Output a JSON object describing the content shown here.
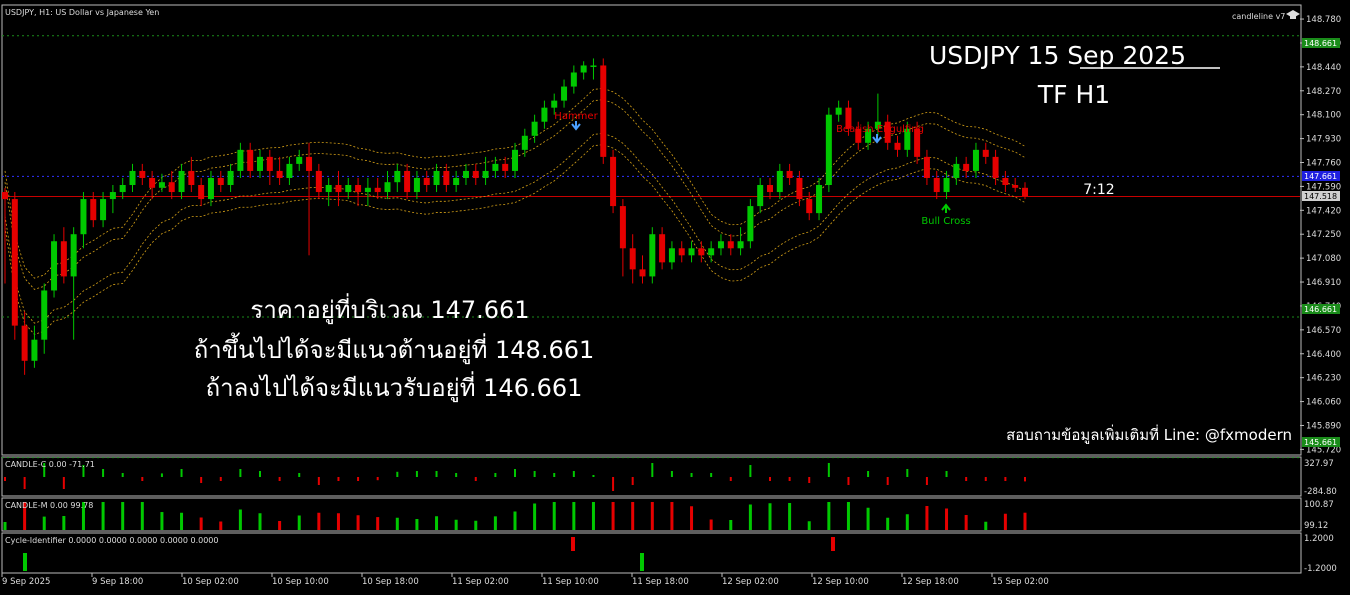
{
  "window": {
    "symbol_header": "USDJPY, H1:  US Dollar vs Japanese Yen",
    "indicator_name": "candleline v7",
    "clock": "7:12"
  },
  "overlay": {
    "title": "USDJPY  15 Sep  2025",
    "timeframe": "TF H1",
    "thai_line1": "ราคาอยู่ที่บริเวณ 147.661",
    "thai_line2": "ถ้าขึ้นไปได้จะมีแนวต้านอยู่ที่ 148.661",
    "thai_line3": "ถ้าลงไปได้จะมีแนวรับอยู่ที่ 146.661",
    "contact": "สอบถามข้อมูลเพิ่มเติมที่ Line: @fxmodern"
  },
  "annotations": {
    "hammer": "Hammer",
    "bearish": "Bearish Engulfing",
    "bull_cross": "Bull Cross"
  },
  "subwindows": {
    "candle_c_label": "CANDLE-C 0.00 -71.71",
    "candle_c_top": "327.97",
    "candle_c_bottom": "-284.80",
    "candle_m_label": "CANDLE-M 0.00 99.78",
    "candle_m_top": "100.87",
    "candle_m_bottom": "99.12",
    "cycle_label": "Cycle-Identifier 0.0000 0.0000 0.0000 0.0000 0.0000",
    "cycle_top": "1.2000",
    "cycle_bottom": "-1.2000"
  },
  "price_tags": {
    "resistance": "148.661",
    "current_blue": "147.661",
    "current": "147.518",
    "support": "146.661",
    "bottom": "145.661"
  },
  "colors": {
    "bull": "#00c800",
    "bear": "#e60000",
    "resistance_line": "#1a8c1a",
    "current_line": "#c80000",
    "blue_line": "#3030ff",
    "band": "#d4a017"
  },
  "chart_data": {
    "type": "candlestick",
    "symbol": "USDJPY",
    "timeframe": "H1",
    "y_ticks": [
      "148.780",
      "148.610",
      "148.440",
      "148.270",
      "148.100",
      "147.930",
      "147.760",
      "147.590",
      "147.420",
      "147.250",
      "147.080",
      "146.910",
      "146.740",
      "146.570",
      "146.400",
      "146.230",
      "146.060",
      "145.890",
      "145.720"
    ],
    "ylim": [
      145.68,
      148.88
    ],
    "x_ticks": [
      "9 Sep 2025",
      "9 Sep 18:00",
      "10 Sep 02:00",
      "10 Sep 10:00",
      "10 Sep 18:00",
      "11 Sep 02:00",
      "11 Sep 10:00",
      "11 Sep 18:00",
      "12 Sep 02:00",
      "12 Sep 10:00",
      "12 Sep 18:00",
      "15 Sep 02:00"
    ],
    "levels": {
      "resistance": 148.661,
      "current": 147.518,
      "current_blue": 147.661,
      "support": 146.661,
      "bottom": 145.661
    },
    "candles": [
      [
        147.55,
        147.5,
        147.58,
        146.9
      ],
      [
        147.5,
        146.6,
        147.55,
        146.5
      ],
      [
        146.6,
        146.35,
        146.7,
        146.25
      ],
      [
        146.35,
        146.5,
        146.6,
        146.3
      ],
      [
        146.5,
        146.85,
        146.9,
        146.4
      ],
      [
        146.85,
        147.2,
        147.25,
        146.8
      ],
      [
        147.2,
        146.95,
        147.3,
        146.9
      ],
      [
        146.95,
        147.25,
        147.3,
        146.5
      ],
      [
        147.25,
        147.5,
        147.55,
        147.15
      ],
      [
        147.5,
        147.35,
        147.55,
        147.3
      ],
      [
        147.35,
        147.5,
        147.55,
        147.3
      ],
      [
        147.5,
        147.55,
        147.6,
        147.4
      ],
      [
        147.55,
        147.6,
        147.65,
        147.5
      ],
      [
        147.6,
        147.7,
        147.75,
        147.55
      ],
      [
        147.7,
        147.65,
        147.75,
        147.6
      ],
      [
        147.65,
        147.58,
        147.7,
        147.5
      ],
      [
        147.58,
        147.62,
        147.68,
        147.55
      ],
      [
        147.62,
        147.55,
        147.7,
        147.5
      ],
      [
        147.55,
        147.7,
        147.75,
        147.5
      ],
      [
        147.7,
        147.6,
        147.8,
        147.55
      ],
      [
        147.6,
        147.5,
        147.65,
        147.45
      ],
      [
        147.5,
        147.65,
        147.7,
        147.45
      ],
      [
        147.65,
        147.6,
        147.7,
        147.55
      ],
      [
        147.6,
        147.7,
        147.75,
        147.55
      ],
      [
        147.7,
        147.85,
        147.9,
        147.65
      ],
      [
        147.85,
        147.7,
        147.9,
        147.65
      ],
      [
        147.7,
        147.8,
        147.85,
        147.65
      ],
      [
        147.8,
        147.7,
        147.85,
        147.6
      ],
      [
        147.7,
        147.65,
        147.8,
        147.6
      ],
      [
        147.65,
        147.75,
        147.8,
        147.6
      ],
      [
        147.75,
        147.8,
        147.85,
        147.7
      ],
      [
        147.8,
        147.7,
        147.9,
        147.1
      ],
      [
        147.7,
        147.55,
        147.75,
        147.5
      ],
      [
        147.55,
        147.6,
        147.65,
        147.45
      ],
      [
        147.6,
        147.55,
        147.7,
        147.45
      ],
      [
        147.55,
        147.6,
        147.65,
        147.5
      ],
      [
        147.6,
        147.55,
        147.65,
        147.45
      ],
      [
        147.55,
        147.58,
        147.65,
        147.45
      ],
      [
        147.58,
        147.55,
        147.65,
        147.5
      ],
      [
        147.55,
        147.62,
        147.7,
        147.5
      ],
      [
        147.62,
        147.7,
        147.75,
        147.55
      ],
      [
        147.7,
        147.55,
        147.75,
        147.5
      ],
      [
        147.55,
        147.65,
        147.7,
        147.5
      ],
      [
        147.65,
        147.6,
        147.7,
        147.55
      ],
      [
        147.6,
        147.7,
        147.75,
        147.55
      ],
      [
        147.7,
        147.6,
        147.75,
        147.55
      ],
      [
        147.6,
        147.65,
        147.7,
        147.55
      ],
      [
        147.65,
        147.7,
        147.75,
        147.6
      ],
      [
        147.7,
        147.65,
        147.75,
        147.6
      ],
      [
        147.65,
        147.7,
        147.8,
        147.6
      ],
      [
        147.7,
        147.75,
        147.8,
        147.65
      ],
      [
        147.75,
        147.7,
        147.8,
        147.65
      ],
      [
        147.7,
        147.85,
        147.9,
        147.65
      ],
      [
        147.85,
        147.95,
        148.0,
        147.8
      ],
      [
        147.95,
        148.05,
        148.1,
        147.9
      ],
      [
        148.05,
        148.15,
        148.2,
        148.0
      ],
      [
        148.15,
        148.2,
        148.25,
        148.1
      ],
      [
        148.2,
        148.3,
        148.35,
        148.15
      ],
      [
        148.3,
        148.4,
        148.45,
        148.25
      ],
      [
        148.4,
        148.45,
        148.48,
        148.35
      ],
      [
        148.45,
        148.45,
        148.5,
        148.35
      ],
      [
        148.45,
        147.8,
        148.5,
        147.75
      ],
      [
        147.8,
        147.45,
        147.85,
        147.4
      ],
      [
        147.45,
        147.15,
        147.5,
        146.95
      ],
      [
        147.15,
        147.0,
        147.25,
        146.9
      ],
      [
        147.0,
        146.95,
        147.1,
        146.9
      ],
      [
        146.95,
        147.25,
        147.3,
        146.9
      ],
      [
        147.25,
        147.05,
        147.3,
        147.0
      ],
      [
        147.05,
        147.15,
        147.2,
        147.0
      ],
      [
        147.15,
        147.1,
        147.2,
        147.05
      ],
      [
        147.1,
        147.15,
        147.2,
        147.05
      ],
      [
        147.15,
        147.1,
        147.2,
        147.05
      ],
      [
        147.1,
        147.15,
        147.2,
        147.05
      ],
      [
        147.15,
        147.2,
        147.25,
        147.1
      ],
      [
        147.2,
        147.15,
        147.25,
        147.1
      ],
      [
        147.15,
        147.2,
        147.3,
        147.1
      ],
      [
        147.2,
        147.45,
        147.5,
        147.15
      ],
      [
        147.45,
        147.6,
        147.65,
        147.4
      ],
      [
        147.6,
        147.55,
        147.65,
        147.5
      ],
      [
        147.55,
        147.7,
        147.75,
        147.5
      ],
      [
        147.7,
        147.65,
        147.75,
        147.6
      ],
      [
        147.65,
        147.5,
        147.7,
        147.45
      ],
      [
        147.5,
        147.4,
        147.55,
        147.35
      ],
      [
        147.4,
        147.6,
        147.65,
        147.35
      ],
      [
        147.6,
        148.1,
        148.15,
        147.55
      ],
      [
        148.1,
        148.15,
        148.2,
        148.05
      ],
      [
        148.15,
        148.0,
        148.2,
        147.95
      ],
      [
        148.0,
        147.9,
        148.05,
        147.85
      ],
      [
        147.9,
        148.0,
        148.05,
        147.85
      ],
      [
        148.0,
        148.05,
        148.25,
        147.95
      ],
      [
        148.05,
        147.9,
        148.1,
        147.85
      ],
      [
        147.9,
        147.85,
        147.95,
        147.8
      ],
      [
        147.85,
        148.0,
        148.05,
        147.8
      ],
      [
        148.0,
        147.8,
        148.05,
        147.75
      ],
      [
        147.8,
        147.65,
        147.85,
        147.6
      ],
      [
        147.65,
        147.55,
        147.7,
        147.5
      ],
      [
        147.55,
        147.65,
        147.7,
        147.5
      ],
      [
        147.65,
        147.75,
        147.8,
        147.6
      ],
      [
        147.75,
        147.7,
        147.8,
        147.65
      ],
      [
        147.7,
        147.85,
        147.9,
        147.65
      ],
      [
        147.85,
        147.8,
        147.9,
        147.75
      ],
      [
        147.8,
        147.65,
        147.85,
        147.6
      ],
      [
        147.65,
        147.6,
        147.7,
        147.55
      ],
      [
        147.6,
        147.58,
        147.65,
        147.55
      ],
      [
        147.58,
        147.52,
        147.62,
        147.5
      ]
    ]
  }
}
